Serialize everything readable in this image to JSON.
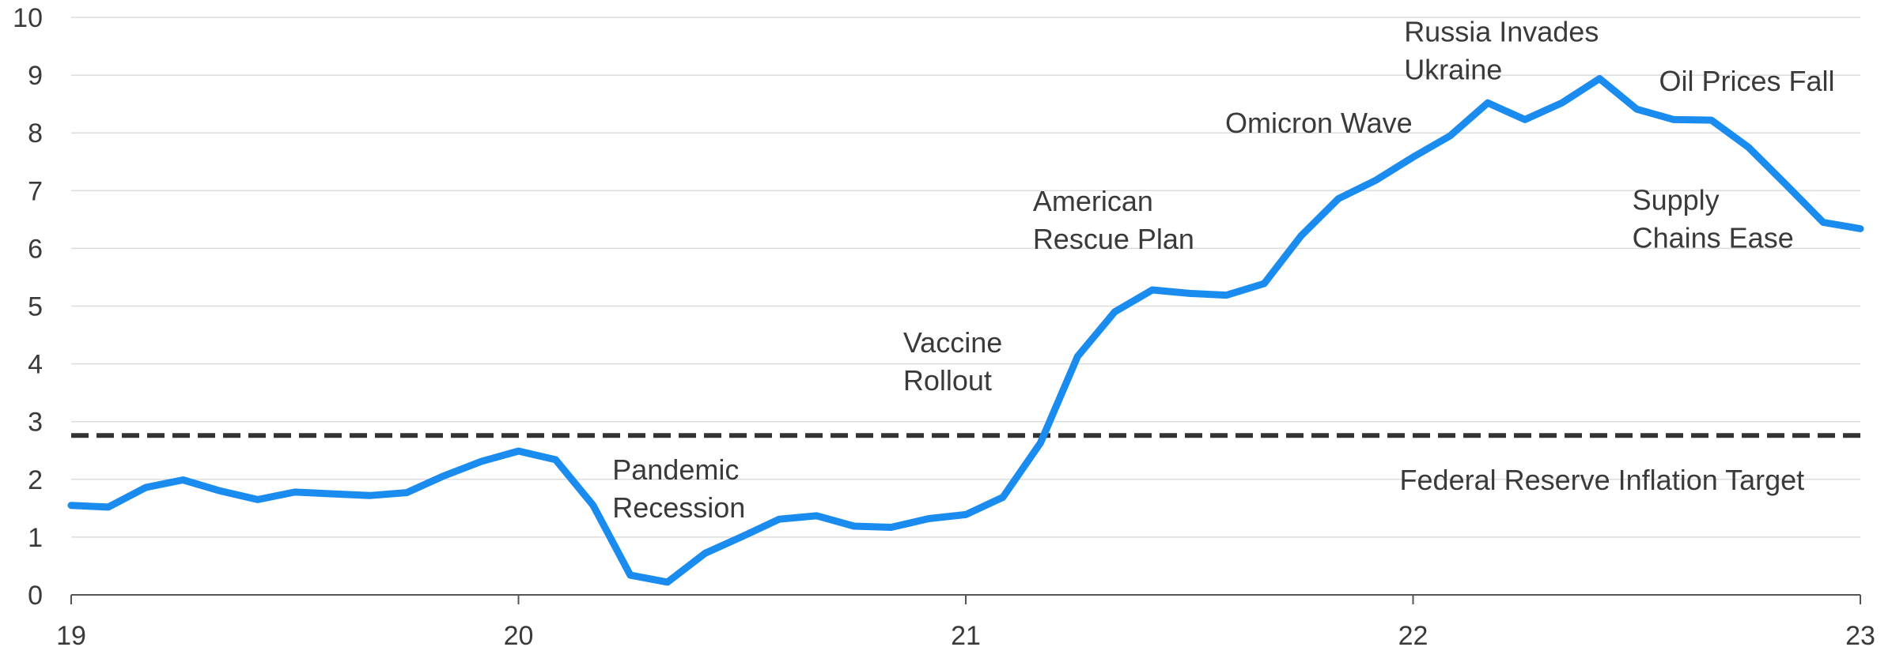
{
  "chart_data": {
    "type": "line",
    "title": "",
    "xlabel": "",
    "ylabel": "",
    "xlim": [
      19,
      23
    ],
    "ylim": [
      0,
      10
    ],
    "x_ticks": [
      "19",
      "20",
      "21",
      "22",
      "23"
    ],
    "y_ticks": [
      "0",
      "1",
      "2",
      "3",
      "4",
      "5",
      "6",
      "7",
      "8",
      "9",
      "10"
    ],
    "grid": true,
    "series": [
      {
        "color": "#1a8cf0",
        "x": [
          19.0,
          19.083,
          19.167,
          19.25,
          19.333,
          19.417,
          19.5,
          19.583,
          19.667,
          19.75,
          19.833,
          19.917,
          20.0,
          20.083,
          20.167,
          20.25,
          20.333,
          20.417,
          20.5,
          20.583,
          20.667,
          20.75,
          20.833,
          20.917,
          21.0,
          21.083,
          21.167,
          21.25,
          21.333,
          21.417,
          21.5,
          21.583,
          21.667,
          21.75,
          21.833,
          21.917,
          22.0,
          22.083,
          22.167,
          22.25,
          22.333,
          22.417,
          22.5,
          22.583,
          22.667,
          22.75,
          22.833,
          22.917,
          23.0
        ],
        "values": [
          1.55,
          1.52,
          1.86,
          1.99,
          1.8,
          1.65,
          1.78,
          1.75,
          1.72,
          1.77,
          2.06,
          2.31,
          2.49,
          2.34,
          1.55,
          0.34,
          0.22,
          0.72,
          1.01,
          1.31,
          1.37,
          1.19,
          1.17,
          1.32,
          1.39,
          1.69,
          2.63,
          4.13,
          4.9,
          5.28,
          5.22,
          5.19,
          5.39,
          6.22,
          6.86,
          7.18,
          7.58,
          7.95,
          8.52,
          8.23,
          8.52,
          8.94,
          8.41,
          8.23,
          8.22,
          7.75,
          7.11,
          6.45,
          6.34
        ]
      }
    ],
    "reference_lines": [
      {
        "label": "Federal Reserve Inflation Target",
        "value": 2.76,
        "color": "#333333",
        "style": "dashed"
      }
    ],
    "annotations": [
      {
        "lines": [
          "Pandemic",
          "Recession"
        ],
        "x": 20.21,
        "y": 2.0
      },
      {
        "lines": [
          "Vaccine",
          "Rollout"
        ],
        "x": 20.86,
        "y": 4.2
      },
      {
        "lines": [
          "American",
          "Rescue Plan"
        ],
        "x": 21.15,
        "y": 6.65
      },
      {
        "lines": [
          "Omicron Wave"
        ],
        "x": 21.58,
        "y": 8.0
      },
      {
        "lines": [
          "Russia Invades",
          "Ukraine"
        ],
        "x": 21.98,
        "y": 9.58
      },
      {
        "lines": [
          "Oil Prices Fall"
        ],
        "x": 22.55,
        "y": 8.73
      },
      {
        "lines": [
          "Supply",
          "Chains Ease"
        ],
        "x": 22.49,
        "y": 6.67
      },
      {
        "lines": [
          "Federal Reserve Inflation Target"
        ],
        "x": 21.97,
        "y": 1.82
      }
    ]
  }
}
